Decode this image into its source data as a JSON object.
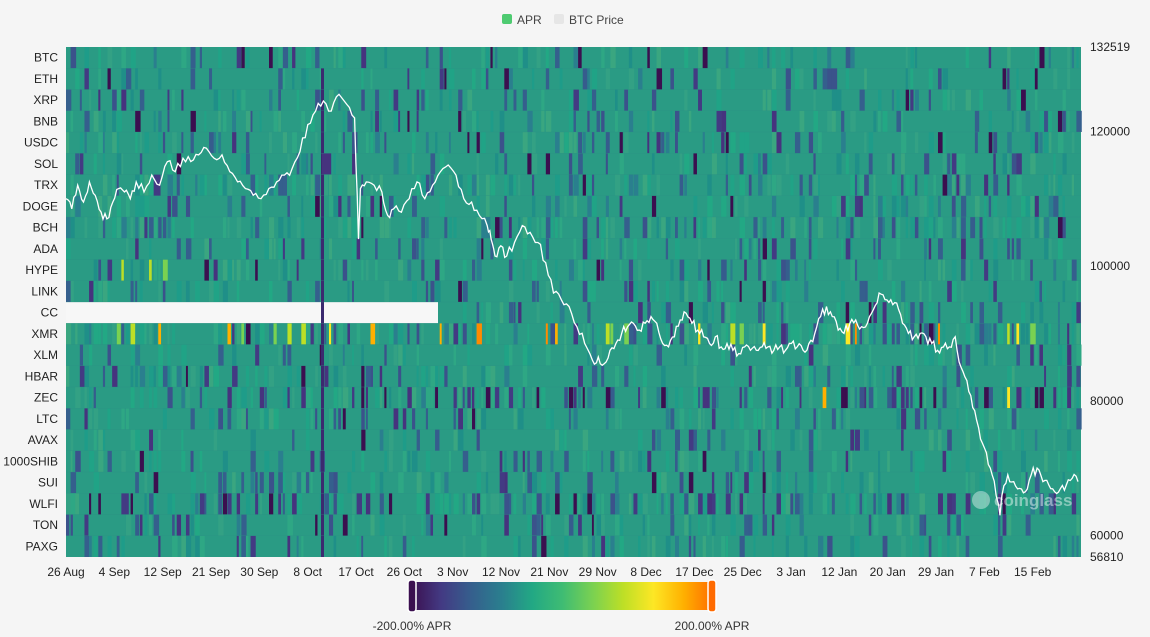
{
  "legend": {
    "items": [
      {
        "name": "APR",
        "color": "#4ecb71"
      },
      {
        "name": "BTC Price",
        "color": "#e6e6e6"
      }
    ]
  },
  "watermark": "coinglass",
  "chart_data": {
    "type": "heatmap",
    "title": "",
    "coins": [
      "BTC",
      "ETH",
      "XRP",
      "BNB",
      "USDC",
      "SOL",
      "TRX",
      "DOGE",
      "BCH",
      "ADA",
      "HYPE",
      "LINK",
      "CC",
      "XMR",
      "XLM",
      "HBAR",
      "ZEC",
      "LTC",
      "AVAX",
      "1000SHIB",
      "SUI",
      "WLFI",
      "TON",
      "PAXG"
    ],
    "x_ticks": [
      "26 Aug",
      "4 Sep",
      "12 Sep",
      "21 Sep",
      "30 Sep",
      "8 Oct",
      "17 Oct",
      "26 Oct",
      "3 Nov",
      "12 Nov",
      "21 Nov",
      "29 Nov",
      "8 Dec",
      "17 Dec",
      "25 Dec",
      "3 Jan",
      "12 Jan",
      "20 Jan",
      "29 Jan",
      "7 Feb",
      "15 Feb"
    ],
    "btc_axis": {
      "min": 56810,
      "max": 132519,
      "ticks": [
        132519,
        120000,
        100000,
        80000,
        60000,
        56810
      ]
    },
    "visual_map": {
      "min_label": "-200.00% APR",
      "max_label": "200.00% APR",
      "min": -200,
      "max": 200,
      "colors": [
        "#3b0f4f",
        "#433a83",
        "#355f8d",
        "#2a7f8e",
        "#22a884",
        "#3fbc73",
        "#7ad151",
        "#bddf26",
        "#fde725",
        "#ffb000",
        "#ff6a00"
      ]
    },
    "heatmap_base_color": "#2a9b84",
    "btc_price_path": [
      [
        0,
        110000
      ],
      [
        3,
        108500
      ],
      [
        6,
        112000
      ],
      [
        9,
        109500
      ],
      [
        12,
        112500
      ],
      [
        15,
        110500
      ],
      [
        18,
        108000
      ],
      [
        21,
        107000
      ],
      [
        24,
        109500
      ],
      [
        27,
        111500
      ],
      [
        30,
        111000
      ],
      [
        33,
        110000
      ],
      [
        36,
        112500
      ],
      [
        40,
        111000
      ],
      [
        44,
        113500
      ],
      [
        48,
        112000
      ],
      [
        52,
        115500
      ],
      [
        56,
        114000
      ],
      [
        60,
        116000
      ],
      [
        64,
        115500
      ],
      [
        68,
        116500
      ],
      [
        72,
        117500
      ],
      [
        76,
        116000
      ],
      [
        80,
        116500
      ],
      [
        84,
        114000
      ],
      [
        88,
        112500
      ],
      [
        92,
        111500
      ],
      [
        96,
        110500
      ],
      [
        100,
        110000
      ],
      [
        104,
        111500
      ],
      [
        108,
        112500
      ],
      [
        112,
        113500
      ],
      [
        116,
        114500
      ],
      [
        120,
        117000
      ],
      [
        124,
        121000
      ],
      [
        128,
        123000
      ],
      [
        132,
        124500
      ],
      [
        136,
        123000
      ],
      [
        140,
        125500
      ],
      [
        144,
        124000
      ],
      [
        148,
        122000
      ],
      [
        150,
        104000
      ],
      [
        151,
        111500
      ],
      [
        154,
        112500
      ],
      [
        158,
        112000
      ],
      [
        162,
        111000
      ],
      [
        165,
        107500
      ],
      [
        168,
        108500
      ],
      [
        172,
        108000
      ],
      [
        176,
        110000
      ],
      [
        180,
        112500
      ],
      [
        184,
        110000
      ],
      [
        188,
        112000
      ],
      [
        192,
        114000
      ],
      [
        196,
        115000
      ],
      [
        200,
        113500
      ],
      [
        204,
        110000
      ],
      [
        208,
        109500
      ],
      [
        212,
        107500
      ],
      [
        216,
        106000
      ],
      [
        218,
        104000
      ],
      [
        220,
        101500
      ],
      [
        223,
        103000
      ],
      [
        226,
        101500
      ],
      [
        230,
        103500
      ],
      [
        234,
        106000
      ],
      [
        238,
        105000
      ],
      [
        242,
        103500
      ],
      [
        246,
        100500
      ],
      [
        250,
        96000
      ],
      [
        254,
        95000
      ],
      [
        258,
        94000
      ],
      [
        262,
        91000
      ],
      [
        266,
        88500
      ],
      [
        270,
        86000
      ],
      [
        273,
        86500
      ],
      [
        276,
        85500
      ],
      [
        279,
        87500
      ],
      [
        282,
        88500
      ],
      [
        285,
        90000
      ],
      [
        288,
        91000
      ],
      [
        291,
        91500
      ],
      [
        294,
        90500
      ],
      [
        297,
        91500
      ],
      [
        300,
        92500
      ],
      [
        303,
        91500
      ],
      [
        306,
        88500
      ],
      [
        309,
        88000
      ],
      [
        312,
        89500
      ],
      [
        315,
        92000
      ],
      [
        318,
        93000
      ],
      [
        321,
        91500
      ],
      [
        324,
        90500
      ],
      [
        327,
        89500
      ],
      [
        330,
        88500
      ],
      [
        333,
        89500
      ],
      [
        336,
        88000
      ],
      [
        339,
        88500
      ],
      [
        342,
        87500
      ],
      [
        345,
        87000
      ],
      [
        348,
        88000
      ],
      [
        351,
        87500
      ],
      [
        354,
        87500
      ],
      [
        357,
        88000
      ],
      [
        360,
        88000
      ],
      [
        363,
        87500
      ],
      [
        366,
        88000
      ],
      [
        369,
        87500
      ],
      [
        372,
        88500
      ],
      [
        375,
        88000
      ],
      [
        378,
        87500
      ],
      [
        381,
        88500
      ],
      [
        384,
        90000
      ],
      [
        387,
        92500
      ],
      [
        390,
        94000
      ],
      [
        393,
        92500
      ],
      [
        396,
        90500
      ],
      [
        399,
        90000
      ],
      [
        402,
        91500
      ],
      [
        405,
        92000
      ],
      [
        408,
        91000
      ],
      [
        411,
        91500
      ],
      [
        414,
        93500
      ],
      [
        417,
        96000
      ],
      [
        420,
        95000
      ],
      [
        423,
        95000
      ],
      [
        426,
        94500
      ],
      [
        429,
        91500
      ],
      [
        432,
        90000
      ],
      [
        435,
        89500
      ],
      [
        438,
        90000
      ],
      [
        441,
        89500
      ],
      [
        444,
        88500
      ],
      [
        447,
        87500
      ],
      [
        450,
        88000
      ],
      [
        453,
        88000
      ],
      [
        456,
        89500
      ],
      [
        459,
        85000
      ],
      [
        462,
        83000
      ],
      [
        465,
        79000
      ],
      [
        468,
        76000
      ],
      [
        471,
        73000
      ],
      [
        474,
        70000
      ],
      [
        477,
        66000
      ],
      [
        479,
        63000
      ],
      [
        480,
        66000
      ],
      [
        483,
        69000
      ],
      [
        486,
        68000
      ],
      [
        489,
        67000
      ],
      [
        492,
        66500
      ],
      [
        495,
        69000
      ],
      [
        498,
        70000
      ],
      [
        501,
        68000
      ],
      [
        504,
        67500
      ],
      [
        507,
        66500
      ],
      [
        510,
        67000
      ],
      [
        513,
        67500
      ],
      [
        516,
        68500
      ],
      [
        519,
        68000
      ]
    ]
  }
}
